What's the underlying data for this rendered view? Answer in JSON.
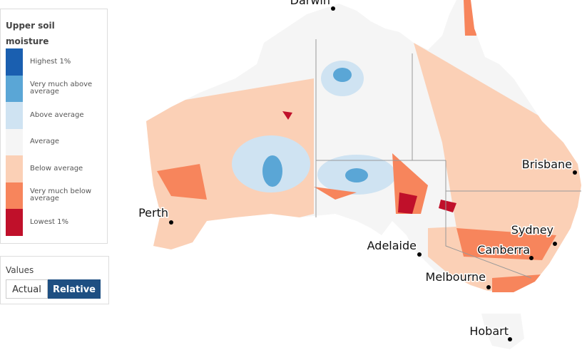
{
  "legend": {
    "title": "Upper soil moisture",
    "items": [
      {
        "label": "Highest 1%",
        "color": "#1a5fb0"
      },
      {
        "label": "Very much above average",
        "color": "#5aa6d6"
      },
      {
        "label": "Above average",
        "color": "#cfe3f2"
      },
      {
        "label": "Average",
        "color": "#f5f5f5"
      },
      {
        "label": "Below average",
        "color": "#fbd0b6"
      },
      {
        "label": "Very much below average",
        "color": "#f7855c"
      },
      {
        "label": "Lowest 1%",
        "color": "#c0102a"
      }
    ]
  },
  "values": {
    "title": "Values",
    "options": [
      "Actual",
      "Relative"
    ]
  },
  "cities": [
    {
      "label": "Darwin"
    },
    {
      "label": "Brisbane"
    },
    {
      "label": "Perth"
    },
    {
      "label": "Sydney"
    },
    {
      "label": "Canberra"
    },
    {
      "label": "Adelaide"
    },
    {
      "label": "Melbourne"
    },
    {
      "label": "Hobart"
    }
  ]
}
